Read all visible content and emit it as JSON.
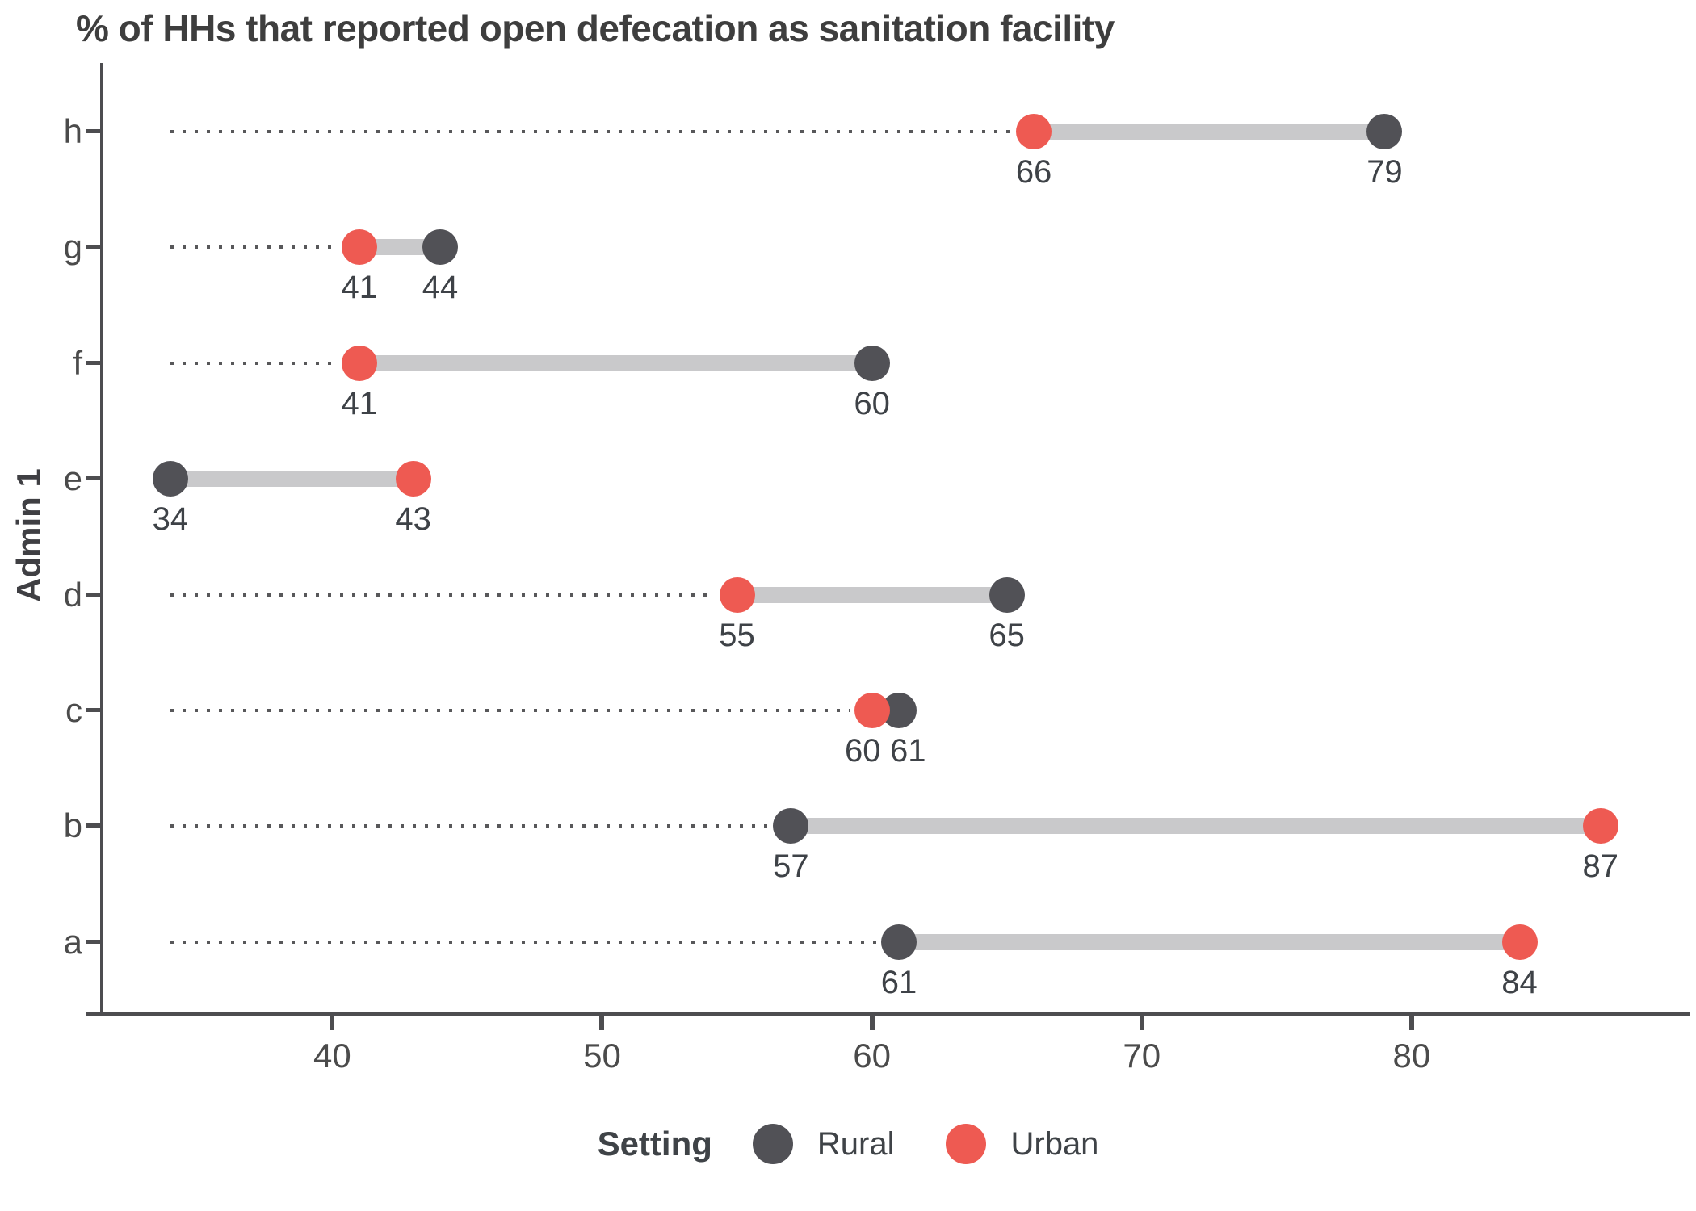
{
  "chart_data": {
    "type": "dumbbell",
    "title": "% of HHs that reported open defecation as sanitation facility",
    "xlabel": "",
    "ylabel": "Admin 1",
    "categories": [
      "h",
      "g",
      "f",
      "e",
      "d",
      "c",
      "b",
      "a"
    ],
    "series": [
      {
        "name": "Rural",
        "color": "#515156",
        "values": [
          79,
          44,
          60,
          34,
          65,
          61,
          57,
          61
        ]
      },
      {
        "name": "Urban",
        "color": "#EE5A52",
        "values": [
          66,
          41,
          41,
          43,
          55,
          60,
          87,
          84
        ]
      }
    ],
    "value_labels": true,
    "x_ticks": [
      40,
      50,
      60,
      70,
      80
    ],
    "xlim": [
      31.4,
      90.3
    ],
    "leader_start": 34,
    "grid": false,
    "legend": {
      "title": "Setting",
      "position": "bottom",
      "entries": [
        {
          "label": "Rural",
          "color": "#515156"
        },
        {
          "label": "Urban",
          "color": "#EE5A52"
        }
      ]
    },
    "colors": {
      "connector": "#C9C9CB",
      "leader": "#58585A",
      "axis": "#4D4D50",
      "value_text": "#3E4247",
      "tick_text": "#4B4B4B"
    }
  }
}
